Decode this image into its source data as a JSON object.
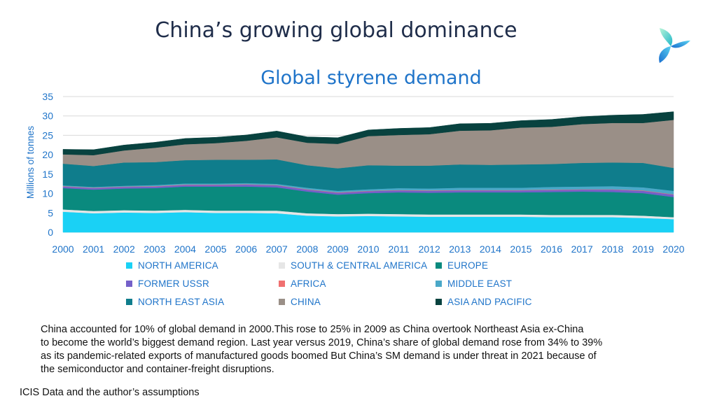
{
  "page": {
    "title": "China’s growing global dominance",
    "logo_icon": "tri-petal-logo-icon",
    "note_lines": [
      "China accounted for 10% of global demand  in 2000.This rose to 25% in 2009 as China overtook Northeast Asia ex-China",
      "to become the world’s biggest demand  region. Last year versus 2019, China’s share of global demand  rose from 34% to 39%",
      "as its pandemic-related  exports of manufactured  goods boomed  But China’s SM demand  is under threat in 2021 because of",
      "the semiconductor  and container-freight disruptions."
    ],
    "source": "ICIS Data and the author’s assumptions"
  },
  "chart_data": {
    "type": "area",
    "stacked": true,
    "title": "Global styrene demand",
    "xlabel": "",
    "ylabel": "Millions of tonnes",
    "ylim": [
      0,
      35
    ],
    "yticks": [
      0,
      5,
      10,
      15,
      20,
      25,
      30,
      35
    ],
    "grid": true,
    "legend_position": "bottom",
    "x": [
      "2000",
      "2001",
      "2002",
      "2003",
      "2004",
      "2005",
      "2006",
      "2007",
      "2008",
      "2009",
      "2010",
      "2011",
      "2012",
      "2013",
      "2014",
      "2015",
      "2016",
      "2017",
      "2018",
      "2019",
      "2020"
    ],
    "series": [
      {
        "name": "NORTH AMERICA",
        "color": "#1ad1f5",
        "values": [
          5.3,
          4.9,
          5.1,
          5.0,
          5.2,
          5.0,
          5.0,
          4.9,
          4.3,
          4.1,
          4.2,
          4.1,
          4.0,
          4.0,
          4.0,
          4.0,
          3.9,
          3.9,
          3.9,
          3.7,
          3.4
        ]
      },
      {
        "name": "SOUTH & CENTRAL AMERICA",
        "color": "#e6e6e6",
        "values": [
          0.6,
          0.6,
          0.6,
          0.6,
          0.6,
          0.6,
          0.6,
          0.7,
          0.6,
          0.6,
          0.6,
          0.6,
          0.6,
          0.6,
          0.6,
          0.6,
          0.6,
          0.6,
          0.6,
          0.6,
          0.5
        ]
      },
      {
        "name": "EUROPE",
        "color": "#0a8a7e",
        "values": [
          5.5,
          5.5,
          5.6,
          5.8,
          6.0,
          6.2,
          6.2,
          6.0,
          5.6,
          5.0,
          5.3,
          5.6,
          5.6,
          5.7,
          5.7,
          5.7,
          5.9,
          6.0,
          5.9,
          5.8,
          5.2
        ]
      },
      {
        "name": "FORMER USSR",
        "color": "#7460c9",
        "values": [
          0.4,
          0.4,
          0.4,
          0.4,
          0.4,
          0.4,
          0.5,
          0.5,
          0.5,
          0.5,
          0.5,
          0.5,
          0.5,
          0.5,
          0.5,
          0.5,
          0.5,
          0.5,
          0.6,
          0.6,
          0.6
        ]
      },
      {
        "name": "AFRICA",
        "color": "#f07070",
        "values": [
          0.1,
          0.1,
          0.1,
          0.1,
          0.1,
          0.1,
          0.1,
          0.1,
          0.1,
          0.1,
          0.1,
          0.1,
          0.1,
          0.1,
          0.1,
          0.1,
          0.1,
          0.1,
          0.1,
          0.1,
          0.1
        ]
      },
      {
        "name": "MIDDLE EAST",
        "color": "#4aa8c8",
        "values": [
          0.2,
          0.2,
          0.2,
          0.3,
          0.3,
          0.3,
          0.3,
          0.3,
          0.4,
          0.4,
          0.4,
          0.5,
          0.5,
          0.6,
          0.6,
          0.6,
          0.7,
          0.7,
          0.8,
          0.8,
          0.9
        ]
      },
      {
        "name": "NORTH EAST ASIA",
        "color": "#0f7d8c",
        "values": [
          5.6,
          5.4,
          6.0,
          5.9,
          6.0,
          6.1,
          6.0,
          6.3,
          5.8,
          5.8,
          6.2,
          5.8,
          5.9,
          6.0,
          5.9,
          6.0,
          5.9,
          6.1,
          6.1,
          6.3,
          5.9
        ]
      },
      {
        "name": "CHINA",
        "color": "#9a8f87",
        "values": [
          2.4,
          2.8,
          3.1,
          3.7,
          4.1,
          4.3,
          4.9,
          5.7,
          5.8,
          6.3,
          7.5,
          7.9,
          8.1,
          8.7,
          8.9,
          9.5,
          9.6,
          10.0,
          10.2,
          10.3,
          12.4
        ]
      },
      {
        "name": "ASIA AND PACIFIC",
        "color": "#08423f",
        "values": [
          1.3,
          1.4,
          1.4,
          1.4,
          1.5,
          1.5,
          1.5,
          1.6,
          1.5,
          1.6,
          1.6,
          1.7,
          1.7,
          1.8,
          1.8,
          1.8,
          1.9,
          1.9,
          2.0,
          2.2,
          2.1
        ]
      }
    ]
  }
}
